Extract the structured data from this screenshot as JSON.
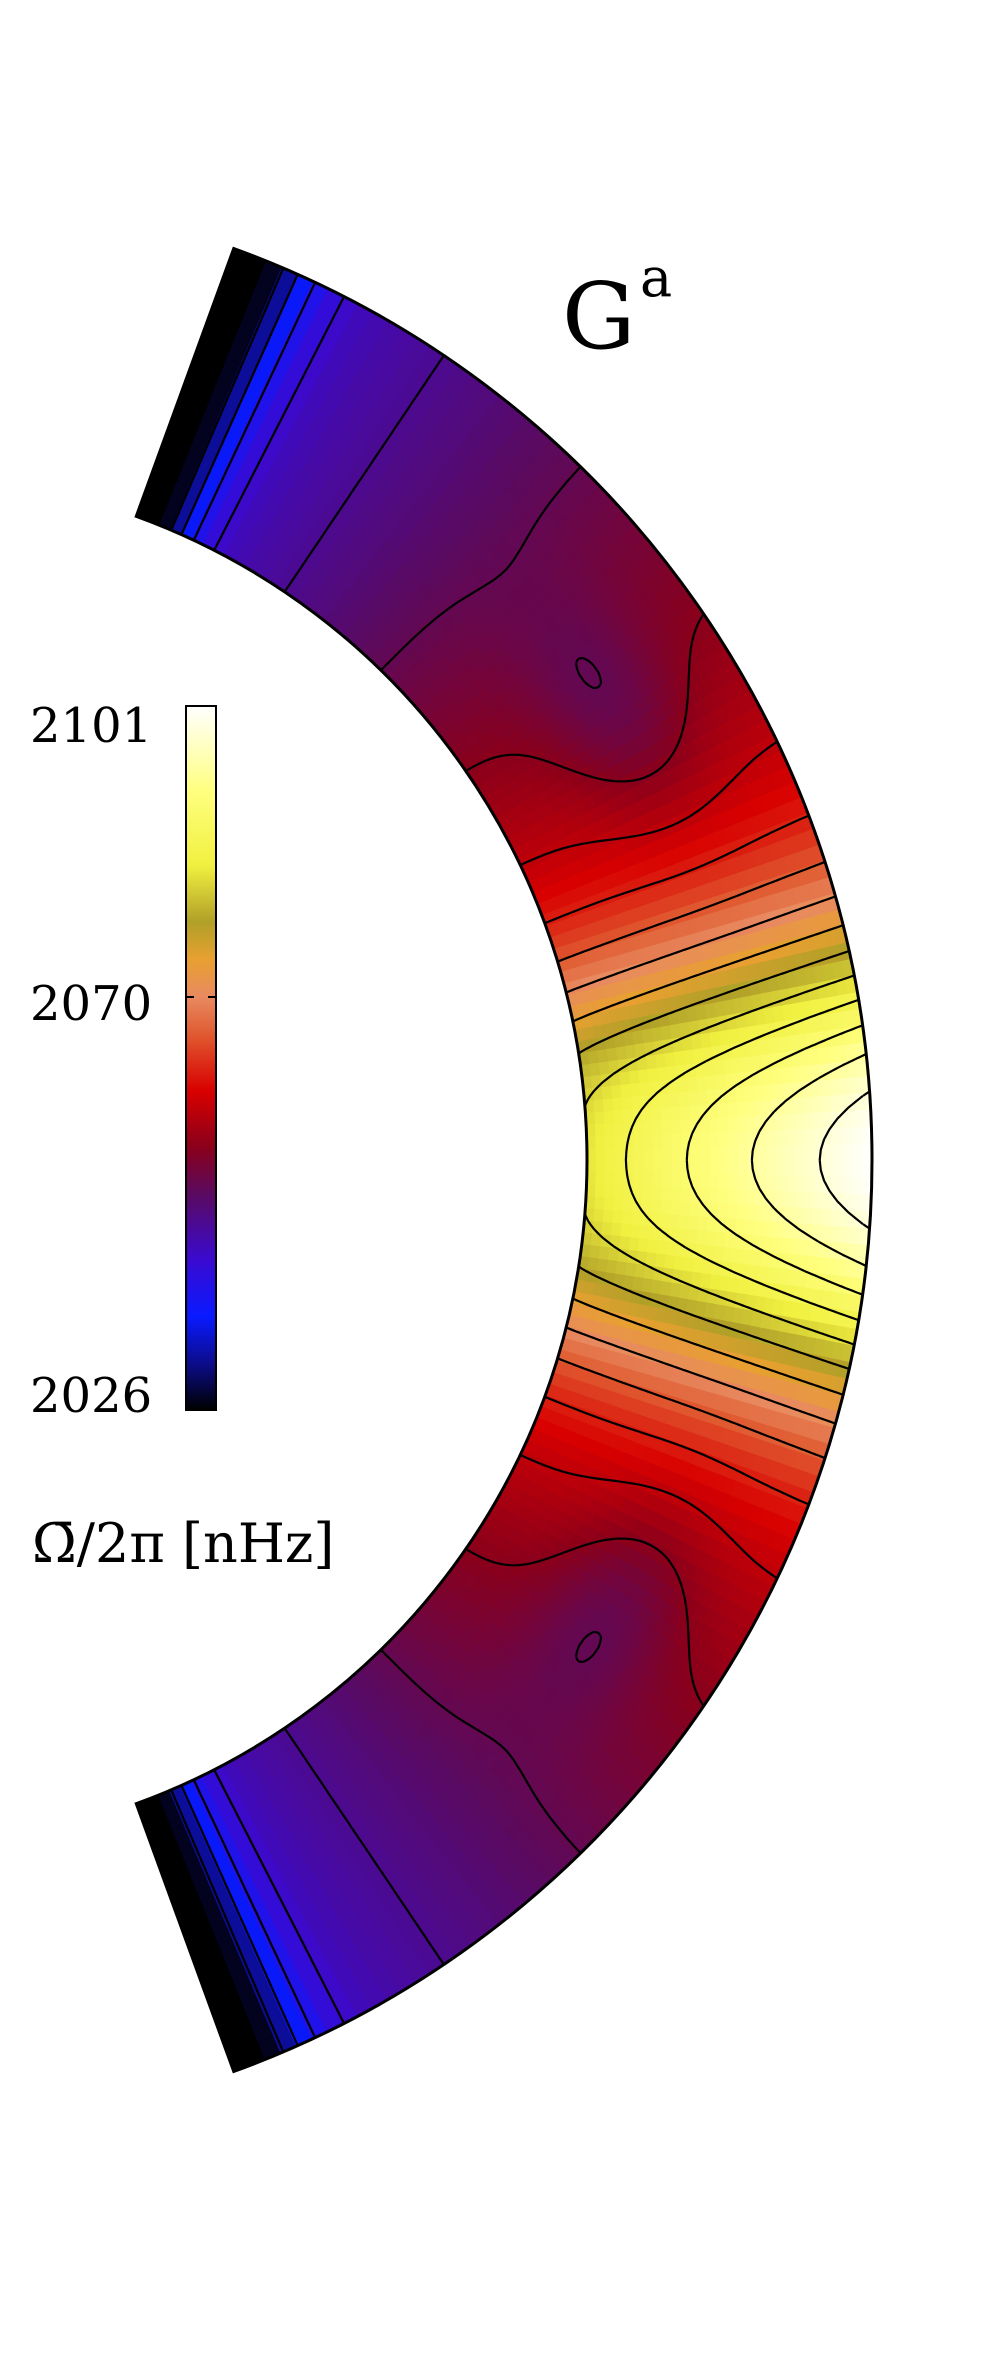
{
  "chart_data": {
    "type": "heatmap",
    "description_kind": "meridional contour plot of mean differential rotation in a spherical shell (northern and southern hemispheres)",
    "panel_label": {
      "letter": "G",
      "superscript": "a"
    },
    "colorbar": {
      "title": "Ω̄/2π [nHz]",
      "ticks": [
        2101,
        2070,
        2026
      ],
      "range": [
        2026,
        2101
      ],
      "stops": [
        {
          "value": 2026,
          "color": "#000000"
        },
        {
          "value": 2031,
          "color": "#0c0c8c"
        },
        {
          "value": 2036,
          "color": "#0a1aff"
        },
        {
          "value": 2042,
          "color": "#3a0ad0"
        },
        {
          "value": 2049,
          "color": "#5a0a60"
        },
        {
          "value": 2054,
          "color": "#8a001a"
        },
        {
          "value": 2060,
          "color": "#d80000"
        },
        {
          "value": 2066,
          "color": "#e05a30"
        },
        {
          "value": 2070,
          "color": "#e88a60"
        },
        {
          "value": 2074,
          "color": "#e8a030"
        },
        {
          "value": 2078,
          "color": "#b0a028"
        },
        {
          "value": 2084,
          "color": "#f0f040"
        },
        {
          "value": 2092,
          "color": "#ffff80"
        },
        {
          "value": 2101,
          "color": "#ffffff"
        }
      ]
    },
    "shell": {
      "latitude_range_deg": [
        -70,
        70
      ],
      "inner_radius_fraction": 0.71,
      "equator_value": 2101,
      "features": [
        {
          "region": "equator outer",
          "value": 2100
        },
        {
          "region": "equator inner",
          "value": 2082
        },
        {
          "region": "mid latitude",
          "value": 2055
        },
        {
          "region": "high latitude",
          "value": 2040
        },
        {
          "region": "pole corners",
          "value": 2026
        }
      ]
    }
  }
}
